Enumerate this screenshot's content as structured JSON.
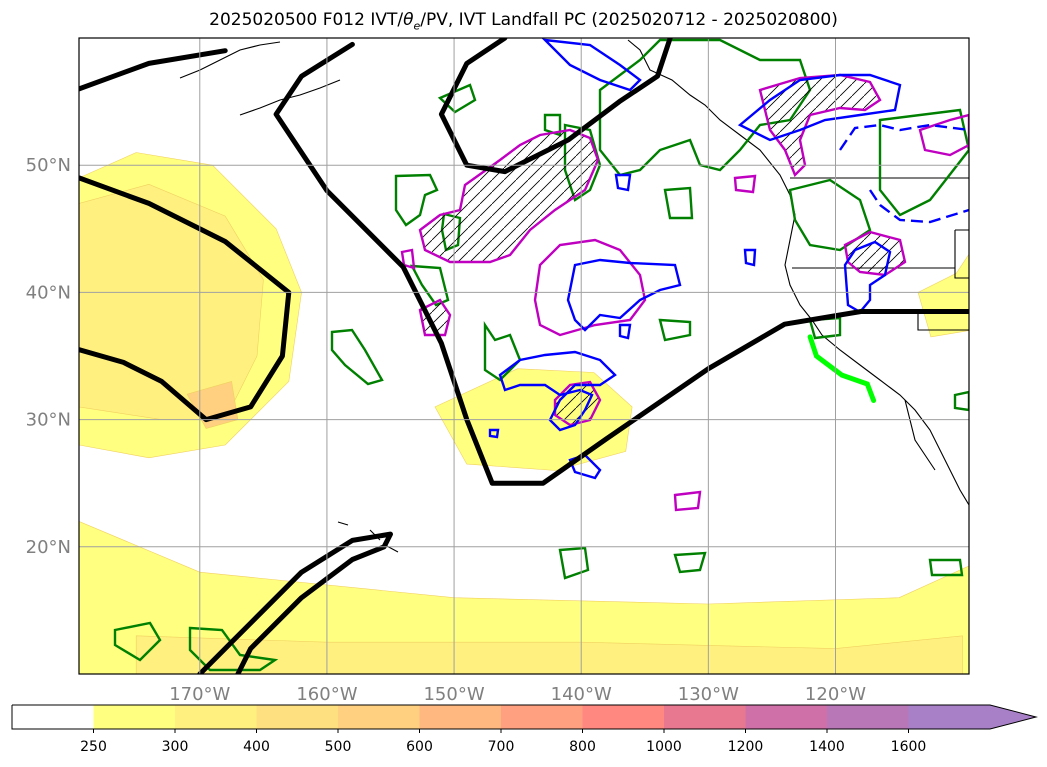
{
  "title_main": "2025020500 F012 IVT/",
  "title_theta": "θ",
  "title_theta_sub": "e",
  "title_rest": "/PV, IVT Landfall PC (2025020712 - 2025020800)",
  "map": {
    "projection": "lat-lon",
    "lon_range": [
      -179.5,
      -109.5
    ],
    "lat_range": [
      10,
      60
    ],
    "grid": true,
    "lat_ticks": [
      {
        "value": 20,
        "label": "20°N"
      },
      {
        "value": 30,
        "label": "30°N"
      },
      {
        "value": 40,
        "label": "40°N"
      },
      {
        "value": 50,
        "label": "50°N"
      }
    ],
    "lon_ticks": [
      {
        "value": -170,
        "label": "170°W"
      },
      {
        "value": -160,
        "label": "160°W"
      },
      {
        "value": -150,
        "label": "150°W"
      },
      {
        "value": -140,
        "label": "140°W"
      },
      {
        "value": -130,
        "label": "130°W"
      },
      {
        "value": -120,
        "label": "120°W"
      }
    ]
  },
  "colors": {
    "black_contour": "#000000",
    "green_contour": "#008000",
    "magenta_contour": "#c000c0",
    "blue_contour": "#0000ff",
    "landfall_line": "#00ff00",
    "grid": "#a0a0a0",
    "tick_label": "#808080"
  },
  "chart_data": {
    "type": "heatmap",
    "variable": "IVT",
    "colorbar": {
      "levels": [
        250,
        300,
        400,
        500,
        600,
        700,
        800,
        1000,
        1200,
        1400,
        1600
      ],
      "labels": [
        "250",
        "300",
        "400",
        "500",
        "600",
        "700",
        "800",
        "1000",
        "1200",
        "1400",
        "1600"
      ],
      "under_color": "#ffffff",
      "colors": [
        "#ffff80",
        "#fff080",
        "#ffe080",
        "#ffd080",
        "#ffb880",
        "#ffa080",
        "#ff8880",
        "#e87890",
        "#d070a8",
        "#b878b8",
        "#a880c8"
      ],
      "extend": "max"
    },
    "ivt_regions": [
      {
        "name": "subtropical-plume-west",
        "points": [
          [
            -179.5,
            49
          ],
          [
            -175,
            51
          ],
          [
            -169,
            50
          ],
          [
            -164,
            45
          ],
          [
            -162,
            40
          ],
          [
            -163,
            33
          ],
          [
            -168,
            28
          ],
          [
            -174,
            27
          ],
          [
            -179.5,
            28
          ]
        ],
        "level": 250
      },
      {
        "name": "plume-core-inner",
        "points": [
          [
            -179.5,
            47
          ],
          [
            -174,
            48.5
          ],
          [
            -168,
            46
          ],
          [
            -165,
            41
          ],
          [
            -165.5,
            35
          ],
          [
            -168,
            30
          ],
          [
            -173,
            30
          ],
          [
            -179.5,
            31
          ]
        ],
        "level": 300
      },
      {
        "name": "plume-core-max",
        "points": [
          [
            -171,
            32
          ],
          [
            -167.5,
            33
          ],
          [
            -167,
            30
          ],
          [
            -169.5,
            29.3
          ]
        ],
        "level": 500
      },
      {
        "name": "central-pacific-blob",
        "points": [
          [
            -151.5,
            31
          ],
          [
            -145,
            34
          ],
          [
            -139,
            33.7
          ],
          [
            -136,
            31
          ],
          [
            -136.5,
            27.5
          ],
          [
            -142,
            26
          ],
          [
            -149,
            26.5
          ]
        ],
        "level": 250
      },
      {
        "name": "east-coast-blob",
        "points": [
          [
            -113.5,
            40
          ],
          [
            -110.5,
            41.5
          ],
          [
            -109.5,
            43
          ],
          [
            -109.5,
            37
          ],
          [
            -112.5,
            36.5
          ]
        ],
        "level": 250
      },
      {
        "name": "southern-band",
        "points": [
          [
            -179.5,
            22
          ],
          [
            -170,
            18
          ],
          [
            -150,
            16
          ],
          [
            -130,
            15.5
          ],
          [
            -115,
            16
          ],
          [
            -109.5,
            18.5
          ],
          [
            -109.5,
            10
          ],
          [
            -179.5,
            10
          ]
        ],
        "level": 250
      },
      {
        "name": "southern-band-inner",
        "points": [
          [
            -175,
            13
          ],
          [
            -160,
            12.5
          ],
          [
            -140,
            12.5
          ],
          [
            -120,
            12
          ],
          [
            -110,
            13
          ],
          [
            -110,
            10
          ],
          [
            -175,
            10
          ]
        ],
        "level": 300
      }
    ],
    "pv_contours_black": [
      {
        "name": "trough-north-west",
        "points": [
          [
            -179.5,
            56
          ],
          [
            -174,
            58
          ],
          [
            -168,
            59
          ]
        ]
      },
      {
        "name": "ridge-arc",
        "points": [
          [
            -158,
            59.5
          ],
          [
            -162,
            57
          ],
          [
            -164,
            54
          ],
          [
            -160,
            48
          ],
          [
            -154,
            42
          ],
          [
            -151,
            36
          ],
          [
            -149,
            30
          ],
          [
            -147,
            25
          ],
          [
            -143,
            25
          ],
          [
            -138,
            28.5
          ],
          [
            -130,
            34
          ],
          [
            -124,
            37.5
          ],
          [
            -118,
            38.5
          ],
          [
            -109.5,
            38.5
          ]
        ]
      },
      {
        "name": "gulf-alaska-arc",
        "points": [
          [
            -146,
            60
          ],
          [
            -149,
            58
          ],
          [
            -151,
            54
          ],
          [
            -149,
            50
          ],
          [
            -146,
            49.5
          ],
          [
            -141,
            52
          ],
          [
            -137,
            55
          ],
          [
            -134,
            57
          ],
          [
            -133,
            60
          ]
        ]
      },
      {
        "name": "western-loop",
        "points": [
          [
            -179.5,
            49
          ],
          [
            -174,
            47
          ],
          [
            -168,
            44
          ],
          [
            -163,
            40
          ],
          [
            -163.5,
            35
          ],
          [
            -166,
            31
          ],
          [
            -169.5,
            30
          ],
          [
            -173,
            33
          ],
          [
            -176,
            34.5
          ],
          [
            -179.5,
            35.5
          ]
        ]
      },
      {
        "name": "southern-tongue",
        "points": [
          [
            -170,
            10
          ],
          [
            -166,
            14
          ],
          [
            -162,
            18
          ],
          [
            -158,
            20.5
          ],
          [
            -155,
            21
          ],
          [
            -155.5,
            20
          ],
          [
            -158,
            19
          ],
          [
            -162,
            16
          ],
          [
            -166,
            12
          ],
          [
            -167,
            10
          ]
        ]
      }
    ],
    "landfall_segment": {
      "name": "IVT landfall",
      "points": [
        [
          -122,
          36.5
        ],
        [
          -121.5,
          35
        ],
        [
          -119.5,
          33.5
        ],
        [
          -117.5,
          32.8
        ],
        [
          -117,
          31.5
        ]
      ]
    }
  },
  "colorbar_extend_label": ""
}
